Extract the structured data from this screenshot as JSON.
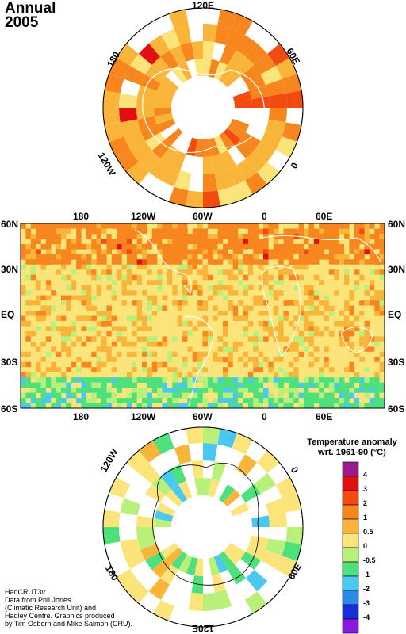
{
  "title": {
    "line1": "Annual",
    "line2": "2005"
  },
  "north_polar": {
    "labels": [
      "120E",
      "60E",
      "0",
      "120W",
      "180"
    ]
  },
  "main_map": {
    "top_lon_labels": [
      "180",
      "120W",
      "60W",
      "0",
      "60E"
    ],
    "bottom_lon_labels": [
      "180",
      "120W",
      "60W",
      "0",
      "60E"
    ],
    "left_lat_labels": [
      "60N",
      "30N",
      "EQ",
      "30S",
      "60S"
    ],
    "right_lat_labels": [
      "60N",
      "30N",
      "EQ",
      "30S",
      "60S"
    ]
  },
  "south_polar": {
    "labels": [
      "120W",
      "0",
      "180",
      "60E",
      "120E"
    ]
  },
  "legend": {
    "title_line1": "Temperature anomaly",
    "title_line2": "wrt. 1961-90  (°C)",
    "ticks": [
      "4",
      "3",
      "2",
      "1",
      "0.5",
      "0",
      "-0.5",
      "-1",
      "-2",
      "-3",
      "-4"
    ],
    "colors": [
      "#9b1a8e",
      "#e01010",
      "#f34a10",
      "#f8861e",
      "#f9b53a",
      "#fbe47a",
      "#b9f07a",
      "#4ee07c",
      "#4ac8f0",
      "#2b8ae8",
      "#1a2ed8",
      "#8a18e0"
    ]
  },
  "credit": {
    "line1": "HadCRUT3v",
    "line2": "Data from Phil Jones",
    "line3": "(Climatic Research Unit) and",
    "line4": "Hadley Centre.  Graphics produced",
    "line5": "by Tim Osborn and Mike Salmon (CRU)."
  }
}
